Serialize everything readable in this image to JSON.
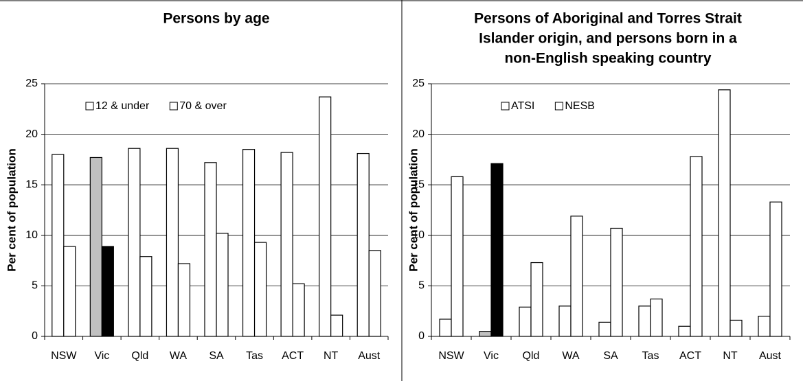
{
  "chart_data": [
    {
      "type": "bar",
      "title": [
        "Persons by age"
      ],
      "ylabel": "Per cent of population",
      "categories": [
        "NSW",
        "Vic",
        "Qld",
        "WA",
        "SA",
        "Tas",
        "ACT",
        "NT",
        "Aust"
      ],
      "series": [
        {
          "name": "12 & under",
          "color": "#ffffff",
          "colors": [
            "#ffffff",
            "#c0c0c0",
            "#ffffff",
            "#ffffff",
            "#ffffff",
            "#ffffff",
            "#ffffff",
            "#ffffff",
            "#ffffff"
          ],
          "values": [
            18.0,
            17.7,
            18.6,
            18.6,
            17.2,
            18.5,
            18.2,
            23.7,
            18.1
          ]
        },
        {
          "name": "70 & over",
          "color": "#ffffff",
          "colors": [
            "#ffffff",
            "#000000",
            "#ffffff",
            "#ffffff",
            "#ffffff",
            "#ffffff",
            "#ffffff",
            "#ffffff",
            "#ffffff"
          ],
          "values": [
            8.9,
            8.9,
            7.9,
            7.2,
            10.2,
            9.3,
            5.2,
            2.1,
            8.5
          ]
        }
      ],
      "ylim": [
        0,
        25
      ],
      "yticks": [
        0,
        5,
        10,
        15,
        20,
        25
      ],
      "grid": true,
      "legend": "top-left"
    },
    {
      "type": "bar",
      "title": [
        "Persons of Aboriginal and Torres Strait",
        "Islander origin, and persons born in a",
        "non-English speaking country"
      ],
      "ylabel": "Per cent of population",
      "categories": [
        "NSW",
        "Vic",
        "Qld",
        "WA",
        "SA",
        "Tas",
        "ACT",
        "NT",
        "Aust"
      ],
      "series": [
        {
          "name": "ATSI",
          "color": "#ffffff",
          "colors": [
            "#ffffff",
            "#c0c0c0",
            "#ffffff",
            "#ffffff",
            "#ffffff",
            "#ffffff",
            "#ffffff",
            "#ffffff",
            "#ffffff"
          ],
          "values": [
            1.7,
            0.5,
            2.9,
            3.0,
            1.4,
            3.0,
            1.0,
            24.4,
            2.0
          ]
        },
        {
          "name": "NESB",
          "color": "#ffffff",
          "colors": [
            "#ffffff",
            "#000000",
            "#ffffff",
            "#ffffff",
            "#ffffff",
            "#ffffff",
            "#ffffff",
            "#ffffff",
            "#ffffff"
          ],
          "values": [
            15.8,
            17.1,
            7.3,
            11.9,
            10.7,
            3.7,
            17.8,
            1.6,
            13.3
          ]
        }
      ],
      "ylim": [
        0,
        25
      ],
      "yticks": [
        0,
        5,
        10,
        15,
        20,
        25
      ],
      "grid": true,
      "legend": "top-left"
    }
  ]
}
